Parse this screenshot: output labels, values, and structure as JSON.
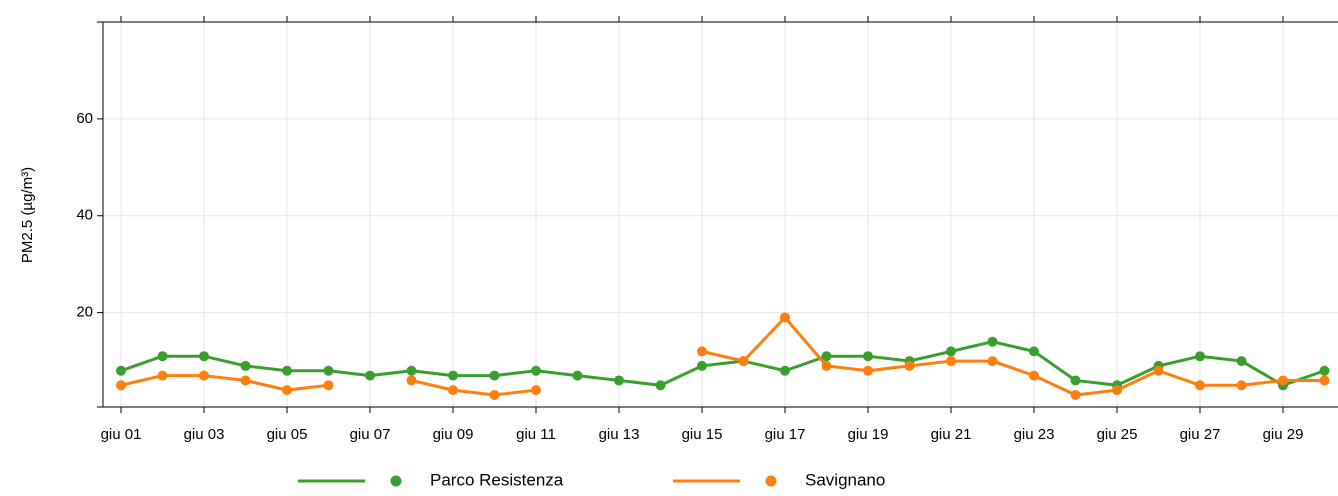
{
  "chart_data": {
    "type": "line",
    "y_label": "PM2.5 (µg/m³)",
    "categories": [
      "giu 01",
      null,
      "giu 03",
      null,
      "giu 05",
      null,
      "giu 07",
      null,
      "giu 09",
      null,
      "giu 11",
      null,
      "giu 13",
      null,
      "giu 15",
      null,
      "giu 17",
      null,
      "giu 19",
      null,
      "giu 21",
      null,
      "giu 23",
      null,
      "giu 25",
      null,
      "giu 27",
      null,
      "giu 29",
      null
    ],
    "series": [
      {
        "name": "Parco Resistenza",
        "color": "#3a9e2f",
        "values": [
          8,
          11,
          11,
          9,
          8,
          8,
          7,
          8,
          7,
          7,
          8,
          7,
          6,
          5,
          9,
          10,
          8,
          11,
          11,
          10,
          12,
          14,
          12,
          6,
          5,
          9,
          11,
          10,
          5,
          8
        ]
      },
      {
        "name": "Savignano",
        "color": "#ff7f0e",
        "values": [
          5,
          7,
          7,
          6,
          4,
          5,
          null,
          6,
          4,
          3,
          4,
          null,
          null,
          null,
          12,
          10,
          19,
          9,
          8,
          9,
          10,
          10,
          7,
          3,
          4,
          8,
          5,
          5,
          6,
          6
        ]
      }
    ],
    "ylim": [
      0,
      80
    ],
    "yticks": [
      20,
      40,
      60
    ],
    "grid": true,
    "legend": "bottom"
  }
}
